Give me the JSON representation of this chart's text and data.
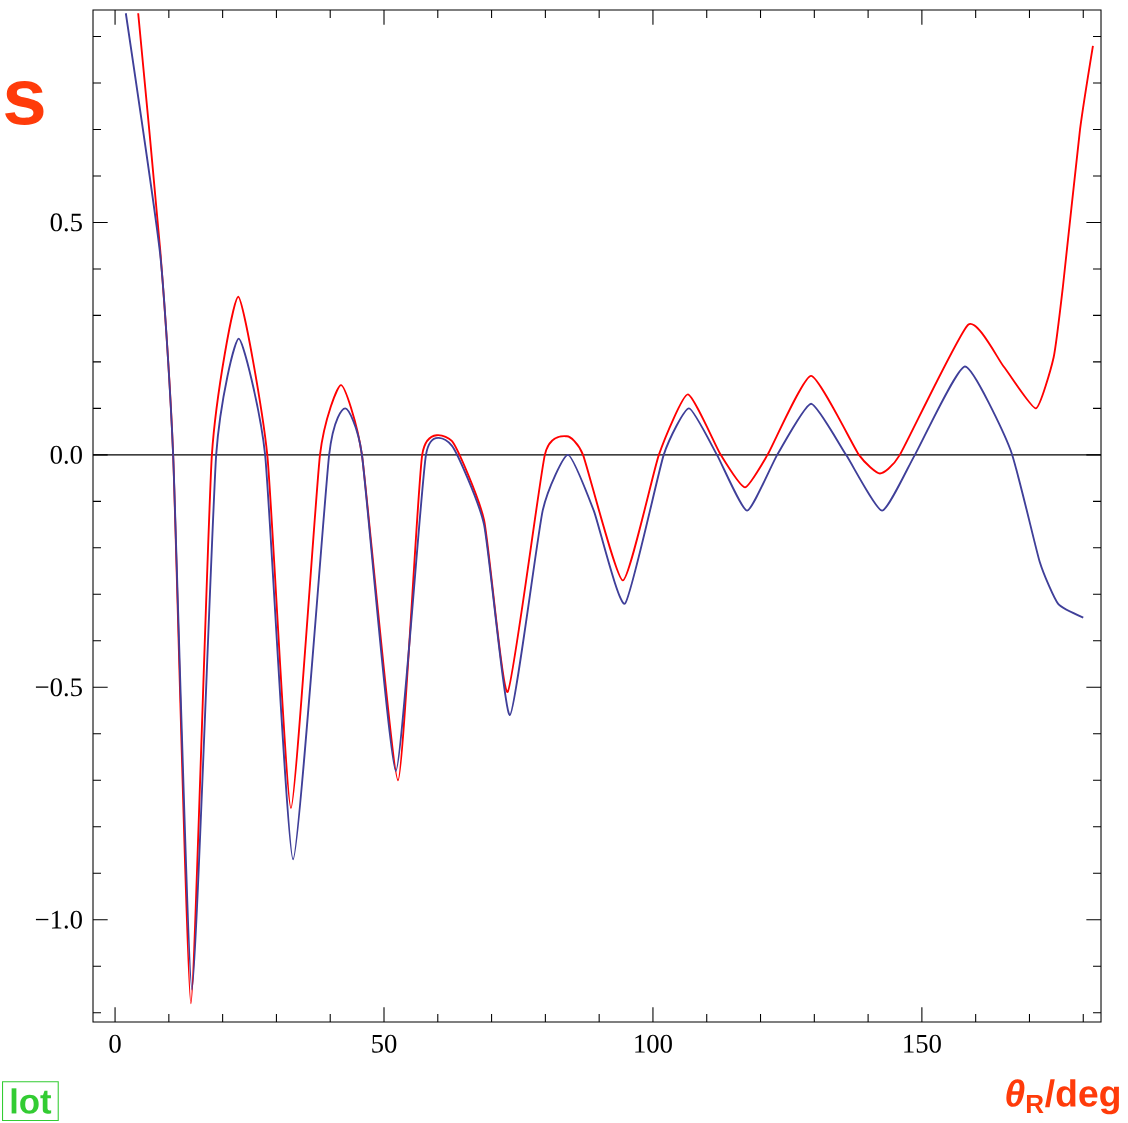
{
  "chart_data": {
    "type": "line",
    "xlabel": "*θ*$_{R}$/deg",
    "annotations": [
      "s",
      "lot"
    ],
    "xlim": [
      -4.1,
      183.3
    ],
    "ylim": [
      -1.22,
      0.957
    ],
    "xticks": [
      0,
      {
        "value": 10,
        "label": null
      },
      {
        "value": 20,
        "label": null
      },
      {
        "value": 30,
        "label": null
      },
      {
        "value": 40,
        "label": null
      },
      50,
      {
        "value": 60,
        "label": null
      },
      {
        "value": 70,
        "label": null
      },
      {
        "value": 80,
        "label": null
      },
      {
        "value": 90,
        "label": null
      },
      100,
      {
        "value": 110,
        "label": null
      },
      {
        "value": 120,
        "label": null
      },
      {
        "value": 130,
        "label": null
      },
      {
        "value": 140,
        "label": null
      },
      150,
      {
        "value": 160,
        "label": null
      },
      {
        "value": 170,
        "label": null
      },
      {
        "value": 180,
        "label": null
      }
    ],
    "yticks": [
      {
        "value": -1.2,
        "label": null
      },
      {
        "value": -1.1,
        "label": null
      },
      {
        "value": -1.0,
        "label": "−1.0"
      },
      {
        "value": -0.9,
        "label": null
      },
      {
        "value": -0.8,
        "label": null
      },
      {
        "value": -0.7,
        "label": null
      },
      {
        "value": -0.6,
        "label": null
      },
      {
        "value": -0.5,
        "label": "−0.5"
      },
      {
        "value": -0.4,
        "label": null
      },
      {
        "value": -0.3,
        "label": null
      },
      {
        "value": -0.2,
        "label": null
      },
      {
        "value": -0.1,
        "label": null
      },
      {
        "value": 0.0,
        "label": "0.0"
      },
      {
        "value": 0.1,
        "label": null
      },
      {
        "value": 0.2,
        "label": null
      },
      {
        "value": 0.3,
        "label": null
      },
      {
        "value": 0.4,
        "label": null
      },
      {
        "value": 0.5,
        "label": "0.5"
      },
      {
        "value": 0.6,
        "label": null
      },
      {
        "value": 0.7,
        "label": null
      },
      {
        "value": 0.8,
        "label": null
      },
      {
        "value": 0.9,
        "label": null
      }
    ],
    "ref_lines": [
      {
        "axis": "y",
        "value": 0,
        "color": "#000000"
      }
    ],
    "series": [
      {
        "color": "#ff0000",
        "x": [
          4.3,
          8.4,
          10.8,
          14.1,
          18.0,
          22.9,
          28.3,
          32.7,
          38.1,
          42.0,
          45.9,
          52.6,
          57.1,
          62.6,
          68.6,
          73.0,
          79.9,
          84.0,
          87.0,
          94.4,
          101.1,
          106.5,
          112.6,
          117.1,
          121.3,
          129.4,
          138.3,
          142.2,
          145.9,
          158.6,
          165.2,
          171.2,
          174.5,
          176.2,
          179.4,
          181.8
        ],
        "values": [
          0.95,
          0.44,
          0,
          -1.18,
          0,
          0.34,
          0,
          -0.76,
          0,
          0.15,
          0,
          -0.7,
          0,
          0.03,
          -0.14,
          -0.51,
          0,
          0.04,
          0,
          -0.27,
          0,
          0.13,
          0,
          -0.07,
          0,
          0.17,
          0,
          -0.04,
          0,
          0.28,
          0.19,
          0.1,
          0.21,
          0.36,
          0.7,
          0.88
        ]
      },
      {
        "color": "#3f3f99",
        "x": [
          2.0,
          8.4,
          10.8,
          14.3,
          18.8,
          23.0,
          27.9,
          33.1,
          39.8,
          42.8,
          45.9,
          52.2,
          57.8,
          62.6,
          68.6,
          73.4,
          79.5,
          84.2,
          89.0,
          94.8,
          102.0,
          106.7,
          111.9,
          117.5,
          123.1,
          129.4,
          135.9,
          142.6,
          148.7,
          158.0,
          166.5,
          171.9,
          175.3,
          180.0
        ],
        "values": [
          0.95,
          0.43,
          0,
          -1.15,
          0,
          0.25,
          0,
          -0.87,
          0,
          0.1,
          0,
          -0.68,
          0,
          0.02,
          -0.15,
          -0.56,
          -0.12,
          0.0,
          -0.12,
          -0.32,
          0,
          0.1,
          0,
          -0.12,
          0,
          0.11,
          0,
          -0.12,
          0,
          0.19,
          0.01,
          -0.23,
          -0.32,
          -0.35
        ]
      }
    ]
  }
}
